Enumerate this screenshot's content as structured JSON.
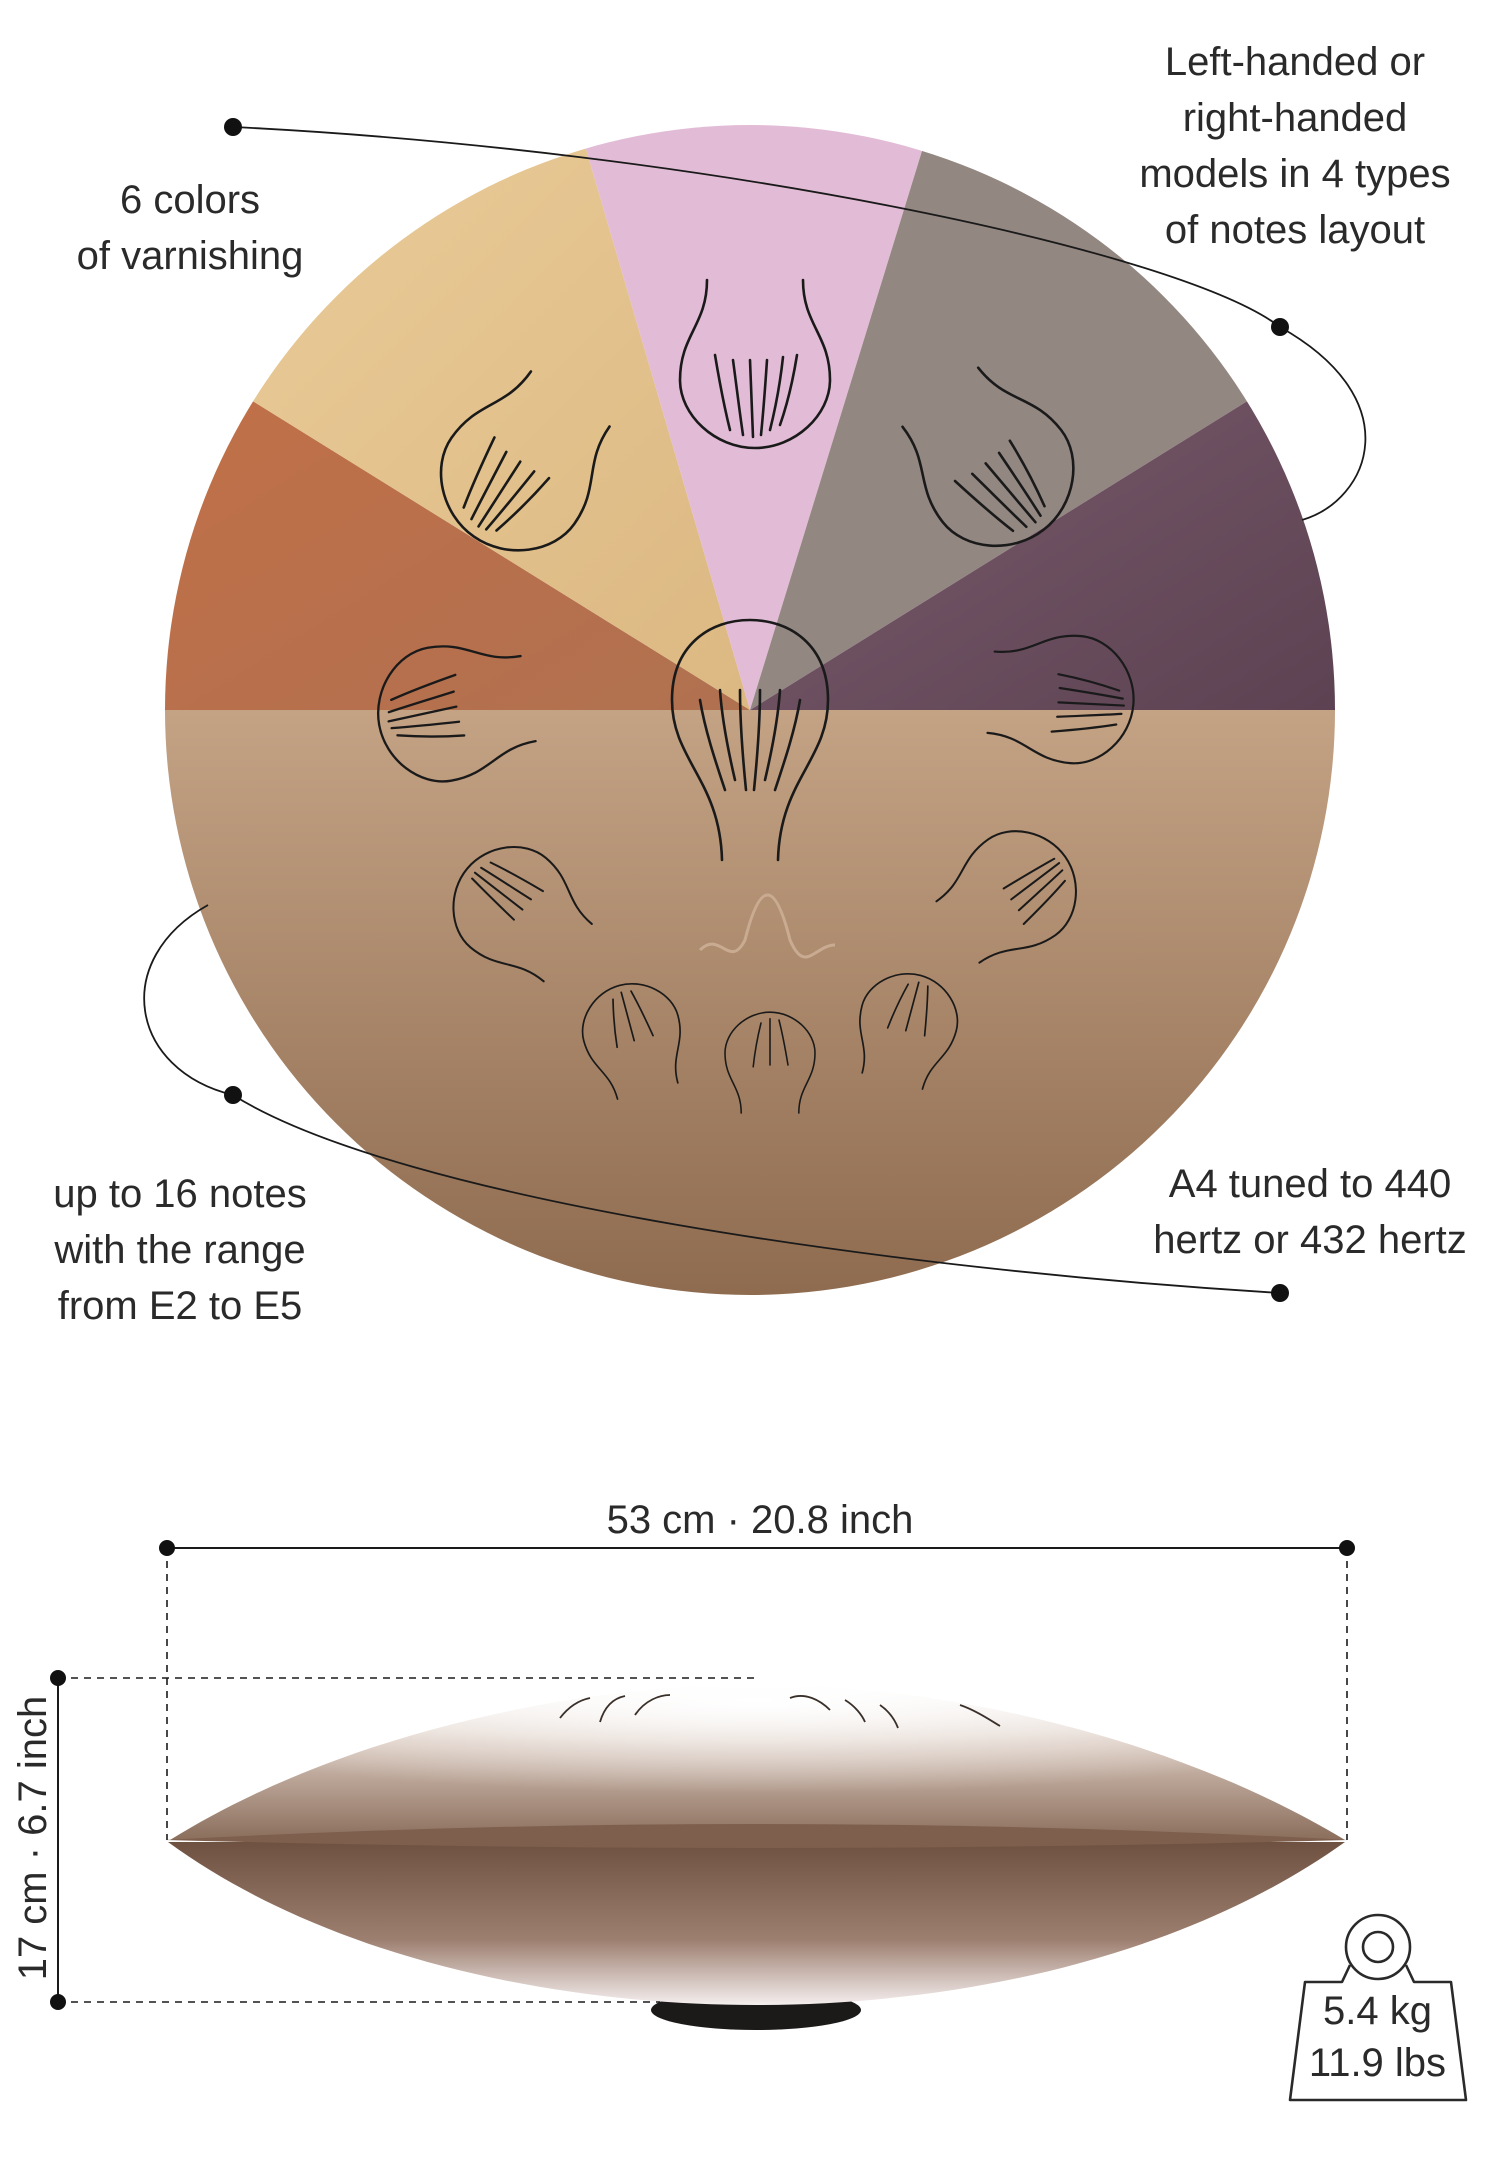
{
  "callouts": {
    "varnishing": {
      "lines": [
        "6 colors",
        "of varnishing"
      ]
    },
    "layout": {
      "lines": [
        "Left-handed or",
        "right-handed",
        "models in 4 types",
        "of notes layout"
      ]
    },
    "notes": {
      "lines": [
        "up to 16 notes",
        "with the range",
        "from E2 to E5"
      ]
    },
    "tuning": {
      "lines": [
        "A4 tuned to 440",
        "hertz or 432 hertz"
      ]
    }
  },
  "dimensions": {
    "width_label": "53 cm · 20.8 inch",
    "height_label": "17 cm · 6.7 inch"
  },
  "weight": {
    "kg": "5.4 kg",
    "lbs": "11.9 lbs"
  },
  "colors": {
    "varnish_pink": "#e2bcd6",
    "varnish_gray": "#928681",
    "varnish_plum": "#6e5364",
    "varnish_gold": "#e8c78f",
    "varnish_copper": "#b0643e",
    "varnish_bronze": "#b39172"
  }
}
